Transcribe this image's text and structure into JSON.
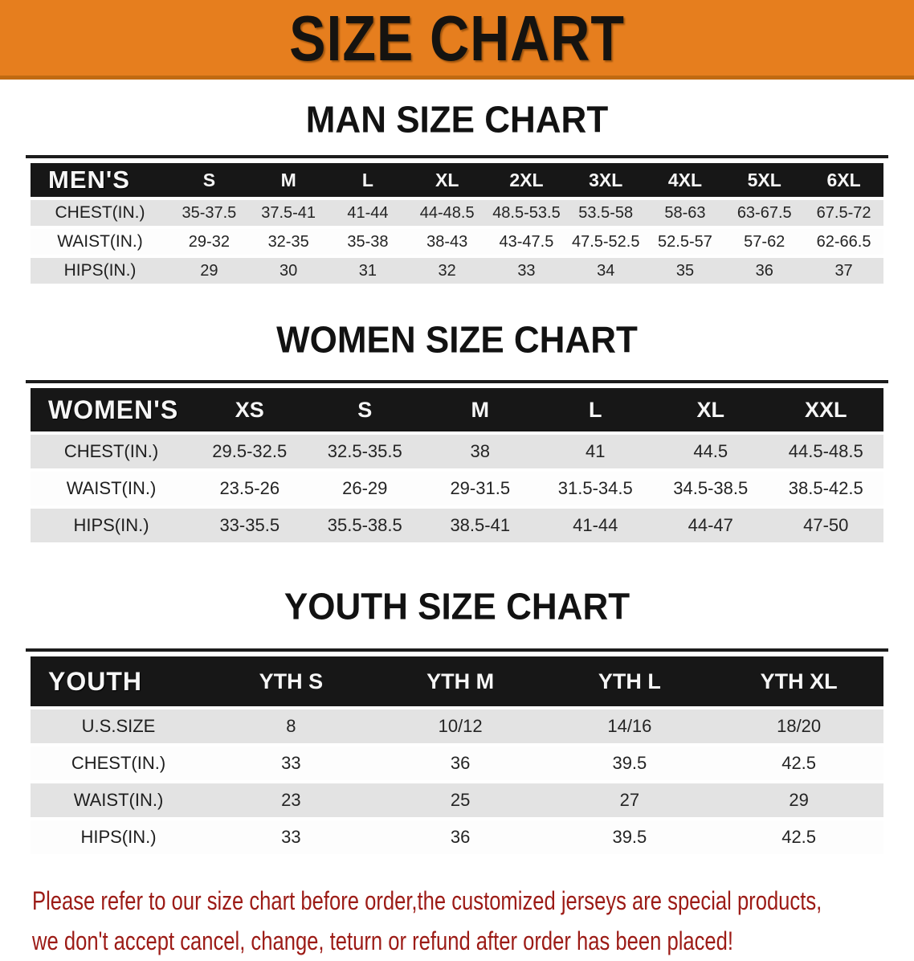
{
  "banner": {
    "title": "SIZE CHART",
    "bg_color": "#E67E1E",
    "text_color": "#151310"
  },
  "colors": {
    "table_header_bg": "#171717",
    "table_header_text": "#F6F6F6",
    "row_shaded": "#E3E3E3",
    "row_plain": "#FDFDFD",
    "footer_text": "#9C1B16"
  },
  "sections": [
    {
      "id": "men",
      "heading": "MAN SIZE CHART",
      "header": {
        "label": "MEN'S",
        "columns": [
          "S",
          "M",
          "L",
          "XL",
          "2XL",
          "3XL",
          "4XL",
          "5XL",
          "6XL"
        ]
      },
      "rows": [
        {
          "label": "CHEST(IN.)",
          "values": [
            "35-37.5",
            "37.5-41",
            "41-44",
            "44-48.5",
            "48.5-53.5",
            "53.5-58",
            "58-63",
            "63-67.5",
            "67.5-72"
          ]
        },
        {
          "label": "WAIST(IN.)",
          "values": [
            "29-32",
            "32-35",
            "35-38",
            "38-43",
            "43-47.5",
            "47.5-52.5",
            "52.5-57",
            "57-62",
            "62-66.5"
          ]
        },
        {
          "label": "HIPS(IN.)",
          "values": [
            "29",
            "30",
            "31",
            "32",
            "33",
            "34",
            "35",
            "36",
            "37"
          ]
        }
      ]
    },
    {
      "id": "women",
      "heading": "WOMEN SIZE CHART",
      "header": {
        "label": "WOMEN'S",
        "columns": [
          "XS",
          "S",
          "M",
          "L",
          "XL",
          "XXL"
        ]
      },
      "rows": [
        {
          "label": "CHEST(IN.)",
          "values": [
            "29.5-32.5",
            "32.5-35.5",
            "38",
            "41",
            "44.5",
            "44.5-48.5"
          ]
        },
        {
          "label": "WAIST(IN.)",
          "values": [
            "23.5-26",
            "26-29",
            "29-31.5",
            "31.5-34.5",
            "34.5-38.5",
            "38.5-42.5"
          ]
        },
        {
          "label": "HIPS(IN.)",
          "values": [
            "33-35.5",
            "35.5-38.5",
            "38.5-41",
            "41-44",
            "44-47",
            "47-50"
          ]
        }
      ]
    },
    {
      "id": "youth",
      "heading": "YOUTH SIZE CHART",
      "header": {
        "label": "YOUTH",
        "columns": [
          "YTH S",
          "YTH M",
          "YTH L",
          "YTH XL"
        ]
      },
      "rows": [
        {
          "label": "U.S.SIZE",
          "values": [
            "8",
            "10/12",
            "14/16",
            "18/20"
          ]
        },
        {
          "label": "CHEST(IN.)",
          "values": [
            "33",
            "36",
            "39.5",
            "42.5"
          ]
        },
        {
          "label": "WAIST(IN.)",
          "values": [
            "23",
            "25",
            "27",
            "29"
          ]
        },
        {
          "label": "HIPS(IN.)",
          "values": [
            "33",
            "36",
            "39.5",
            "42.5"
          ]
        }
      ]
    }
  ],
  "footer": {
    "lines": [
      "Please refer to our size chart before order,the customized jerseys are special products,",
      "we don't accept cancel, change, teturn or refund after order has been placed!"
    ]
  }
}
